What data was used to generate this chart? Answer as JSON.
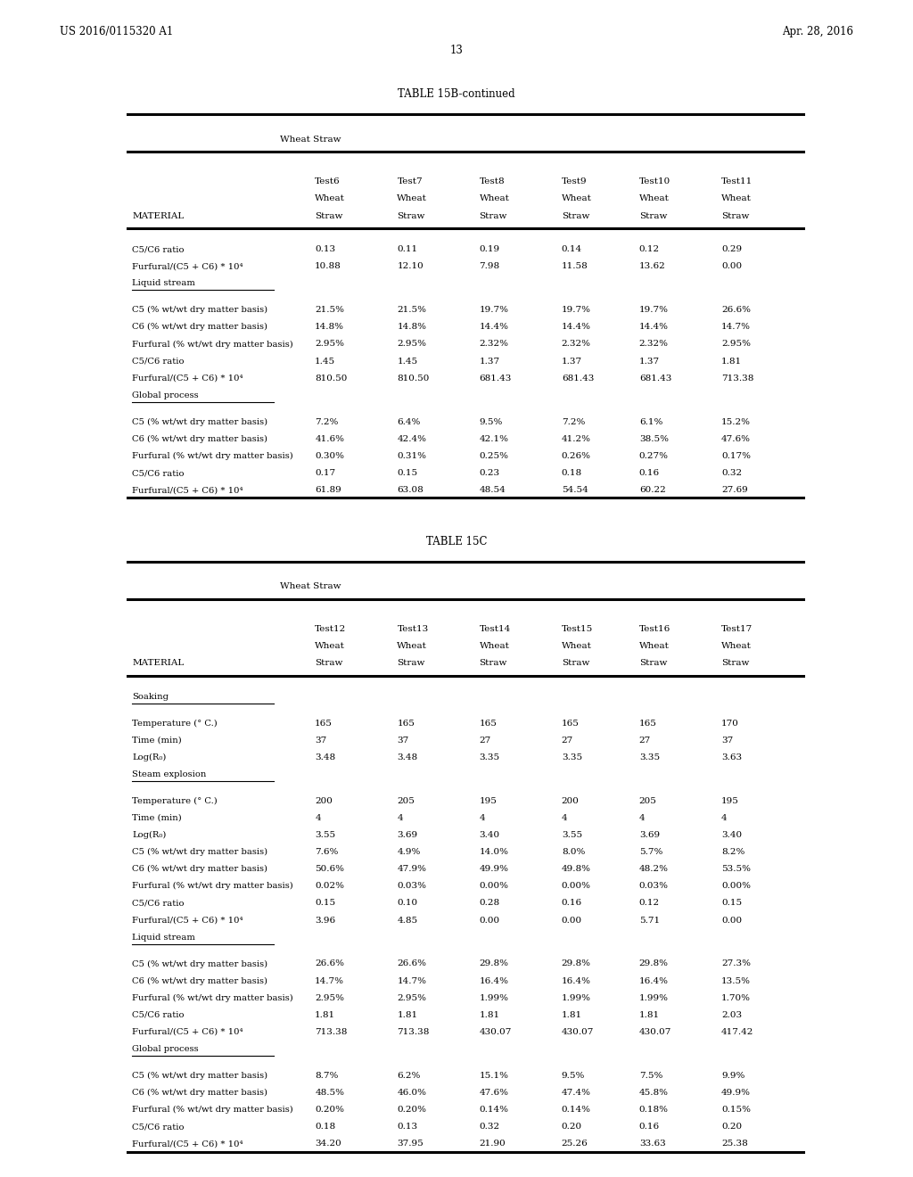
{
  "header_left": "US 2016/0115320 A1",
  "header_right": "Apr. 28, 2016",
  "page_number": "13",
  "table15b_title": "TABLE 15B-continued",
  "table15b_subtitle": "Wheat Straw",
  "table15b_col1": [
    "",
    "Test6",
    "Test7",
    "Test8",
    "Test9",
    "Test10",
    "Test11"
  ],
  "table15b_col2": [
    "",
    "Wheat",
    "Wheat",
    "Wheat",
    "Wheat",
    "Wheat",
    "Wheat"
  ],
  "table15b_col3": [
    "MATERIAL",
    "Straw",
    "Straw",
    "Straw",
    "Straw",
    "Straw",
    "Straw"
  ],
  "table15b_data": [
    [
      "C5/C6 ratio",
      "0.13",
      "0.11",
      "0.19",
      "0.14",
      "0.12",
      "0.29"
    ],
    [
      "Furfural/(C5 + C6) * 10⁴",
      "10.88",
      "12.10",
      "7.98",
      "11.58",
      "13.62",
      "0.00"
    ],
    [
      "Liquid stream",
      "",
      "",
      "",
      "",
      "",
      ""
    ],
    [
      "C5 (% wt/wt dry matter basis)",
      "21.5%",
      "21.5%",
      "19.7%",
      "19.7%",
      "19.7%",
      "26.6%"
    ],
    [
      "C6 (% wt/wt dry matter basis)",
      "14.8%",
      "14.8%",
      "14.4%",
      "14.4%",
      "14.4%",
      "14.7%"
    ],
    [
      "Furfural (% wt/wt dry matter basis)",
      "2.95%",
      "2.95%",
      "2.32%",
      "2.32%",
      "2.32%",
      "2.95%"
    ],
    [
      "C5/C6 ratio",
      "1.45",
      "1.45",
      "1.37",
      "1.37",
      "1.37",
      "1.81"
    ],
    [
      "Furfural/(C5 + C6) * 10⁴",
      "810.50",
      "810.50",
      "681.43",
      "681.43",
      "681.43",
      "713.38"
    ],
    [
      "Global process",
      "",
      "",
      "",
      "",
      "",
      ""
    ],
    [
      "C5 (% wt/wt dry matter basis)",
      "7.2%",
      "6.4%",
      "9.5%",
      "7.2%",
      "6.1%",
      "15.2%"
    ],
    [
      "C6 (% wt/wt dry matter basis)",
      "41.6%",
      "42.4%",
      "42.1%",
      "41.2%",
      "38.5%",
      "47.6%"
    ],
    [
      "Furfural (% wt/wt dry matter basis)",
      "0.30%",
      "0.31%",
      "0.25%",
      "0.26%",
      "0.27%",
      "0.17%"
    ],
    [
      "C5/C6 ratio",
      "0.17",
      "0.15",
      "0.23",
      "0.18",
      "0.16",
      "0.32"
    ],
    [
      "Furfural/(C5 + C6) * 10⁴",
      "61.89",
      "63.08",
      "48.54",
      "54.54",
      "60.22",
      "27.69"
    ]
  ],
  "table15c_title": "TABLE 15C",
  "table15c_subtitle": "Wheat Straw",
  "table15c_col1": [
    "",
    "Test12",
    "Test13",
    "Test14",
    "Test15",
    "Test16",
    "Test17"
  ],
  "table15c_col2": [
    "",
    "Wheat",
    "Wheat",
    "Wheat",
    "Wheat",
    "Wheat",
    "Wheat"
  ],
  "table15c_col3": [
    "MATERIAL",
    "Straw",
    "Straw",
    "Straw",
    "Straw",
    "Straw",
    "Straw"
  ],
  "table15c_data": [
    [
      "Soaking",
      "",
      "",
      "",
      "",
      "",
      ""
    ],
    [
      "Temperature (° C.)",
      "165",
      "165",
      "165",
      "165",
      "165",
      "170"
    ],
    [
      "Time (min)",
      "37",
      "37",
      "27",
      "27",
      "27",
      "37"
    ],
    [
      "Log(R₀)",
      "3.48",
      "3.48",
      "3.35",
      "3.35",
      "3.35",
      "3.63"
    ],
    [
      "Steam explosion",
      "",
      "",
      "",
      "",
      "",
      ""
    ],
    [
      "Temperature (° C.)",
      "200",
      "205",
      "195",
      "200",
      "205",
      "195"
    ],
    [
      "Time (min)",
      "4",
      "4",
      "4",
      "4",
      "4",
      "4"
    ],
    [
      "Log(R₀)",
      "3.55",
      "3.69",
      "3.40",
      "3.55",
      "3.69",
      "3.40"
    ],
    [
      "C5 (% wt/wt dry matter basis)",
      "7.6%",
      "4.9%",
      "14.0%",
      "8.0%",
      "5.7%",
      "8.2%"
    ],
    [
      "C6 (% wt/wt dry matter basis)",
      "50.6%",
      "47.9%",
      "49.9%",
      "49.8%",
      "48.2%",
      "53.5%"
    ],
    [
      "Furfural (% wt/wt dry matter basis)",
      "0.02%",
      "0.03%",
      "0.00%",
      "0.00%",
      "0.03%",
      "0.00%"
    ],
    [
      "C5/C6 ratio",
      "0.15",
      "0.10",
      "0.28",
      "0.16",
      "0.12",
      "0.15"
    ],
    [
      "Furfural/(C5 + C6) * 10⁴",
      "3.96",
      "4.85",
      "0.00",
      "0.00",
      "5.71",
      "0.00"
    ],
    [
      "Liquid stream",
      "",
      "",
      "",
      "",
      "",
      ""
    ],
    [
      "C5 (% wt/wt dry matter basis)",
      "26.6%",
      "26.6%",
      "29.8%",
      "29.8%",
      "29.8%",
      "27.3%"
    ],
    [
      "C6 (% wt/wt dry matter basis)",
      "14.7%",
      "14.7%",
      "16.4%",
      "16.4%",
      "16.4%",
      "13.5%"
    ],
    [
      "Furfural (% wt/wt dry matter basis)",
      "2.95%",
      "2.95%",
      "1.99%",
      "1.99%",
      "1.99%",
      "1.70%"
    ],
    [
      "C5/C6 ratio",
      "1.81",
      "1.81",
      "1.81",
      "1.81",
      "1.81",
      "2.03"
    ],
    [
      "Furfural/(C5 + C6) * 10⁴",
      "713.38",
      "713.38",
      "430.07",
      "430.07",
      "430.07",
      "417.42"
    ],
    [
      "Global process",
      "",
      "",
      "",
      "",
      "",
      ""
    ],
    [
      "C5 (% wt/wt dry matter basis)",
      "8.7%",
      "6.2%",
      "15.1%",
      "9.5%",
      "7.5%",
      "9.9%"
    ],
    [
      "C6 (% wt/wt dry matter basis)",
      "48.5%",
      "46.0%",
      "47.6%",
      "47.4%",
      "45.8%",
      "49.9%"
    ],
    [
      "Furfural (% wt/wt dry matter basis)",
      "0.20%",
      "0.20%",
      "0.14%",
      "0.14%",
      "0.18%",
      "0.15%"
    ],
    [
      "C5/C6 ratio",
      "0.18",
      "0.13",
      "0.32",
      "0.20",
      "0.16",
      "0.20"
    ],
    [
      "Furfural/(C5 + C6) * 10⁴",
      "34.20",
      "37.95",
      "21.90",
      "25.26",
      "33.63",
      "25.38"
    ]
  ],
  "section_labels": [
    "Liquid stream",
    "Global process",
    "Soaking",
    "Steam explosion"
  ]
}
